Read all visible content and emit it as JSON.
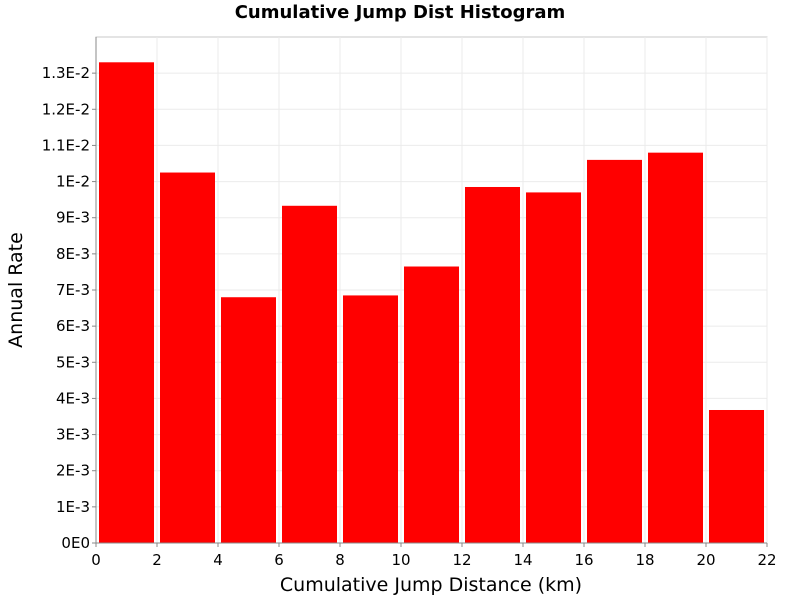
{
  "chart_data": {
    "type": "bar",
    "title": "Cumulative Jump Dist Histogram",
    "xlabel": "Cumulative Jump Distance (km)",
    "ylabel": "Annual Rate",
    "xlim": [
      0,
      22
    ],
    "ylim": [
      0,
      0.014
    ],
    "x_ticks": [
      0,
      2,
      4,
      6,
      8,
      10,
      12,
      14,
      16,
      18,
      20,
      22
    ],
    "x_tick_labels": [
      "0",
      "2",
      "4",
      "6",
      "8",
      "10",
      "12",
      "14",
      "16",
      "18",
      "20",
      "22"
    ],
    "y_ticks": [
      0,
      0.001,
      0.002,
      0.003,
      0.004,
      0.005,
      0.006,
      0.007,
      0.008,
      0.009,
      0.01,
      0.011,
      0.012,
      0.013
    ],
    "y_tick_labels": [
      "0E0",
      "1E-3",
      "2E-3",
      "3E-3",
      "4E-3",
      "5E-3",
      "6E-3",
      "7E-3",
      "8E-3",
      "9E-3",
      "1E-2",
      "1.1E-2",
      "1.2E-2",
      "1.3E-2"
    ],
    "grid": true,
    "bar_width": 2,
    "bar_color": "#ff0000",
    "bins": [
      {
        "x": 1,
        "value": 0.0133
      },
      {
        "x": 3,
        "value": 0.01025
      },
      {
        "x": 5,
        "value": 0.0068
      },
      {
        "x": 7,
        "value": 0.00933
      },
      {
        "x": 9,
        "value": 0.00685
      },
      {
        "x": 11,
        "value": 0.00765
      },
      {
        "x": 13,
        "value": 0.00985
      },
      {
        "x": 15,
        "value": 0.0097
      },
      {
        "x": 17,
        "value": 0.0106
      },
      {
        "x": 19,
        "value": 0.0108
      },
      {
        "x": 21,
        "value": 0.00368
      }
    ]
  }
}
